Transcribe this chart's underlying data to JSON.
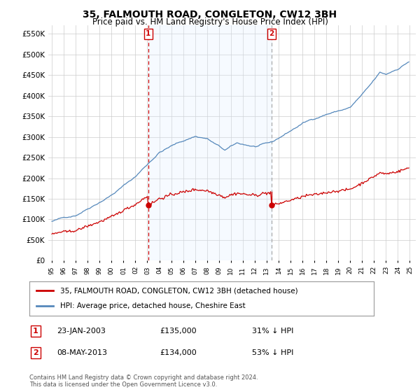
{
  "title": "35, FALMOUTH ROAD, CONGLETON, CW12 3BH",
  "subtitle": "Price paid vs. HM Land Registry's House Price Index (HPI)",
  "legend_label_red": "35, FALMOUTH ROAD, CONGLETON, CW12 3BH (detached house)",
  "legend_label_blue": "HPI: Average price, detached house, Cheshire East",
  "transaction1_date": "23-JAN-2003",
  "transaction1_price": "£135,000",
  "transaction1_hpi": "31% ↓ HPI",
  "transaction1_year": 2003.06,
  "transaction1_value": 135000,
  "transaction2_date": "08-MAY-2013",
  "transaction2_price": "£134,000",
  "transaction2_hpi": "53% ↓ HPI",
  "transaction2_year": 2013.37,
  "transaction2_value": 134000,
  "footer": "Contains HM Land Registry data © Crown copyright and database right 2024.\nThis data is licensed under the Open Government Licence v3.0.",
  "red_color": "#cc0000",
  "blue_color": "#5588bb",
  "blue_fill": "#ddeeff",
  "dashed1_color": "#cc0000",
  "dashed2_color": "#aaaaaa",
  "background_color": "#ffffff",
  "grid_color": "#cccccc",
  "ylim": [
    0,
    570000
  ],
  "yticks": [
    0,
    50000,
    100000,
    150000,
    200000,
    250000,
    300000,
    350000,
    400000,
    450000,
    500000,
    550000
  ],
  "xlim_start": 1994.7,
  "xlim_end": 2025.5
}
